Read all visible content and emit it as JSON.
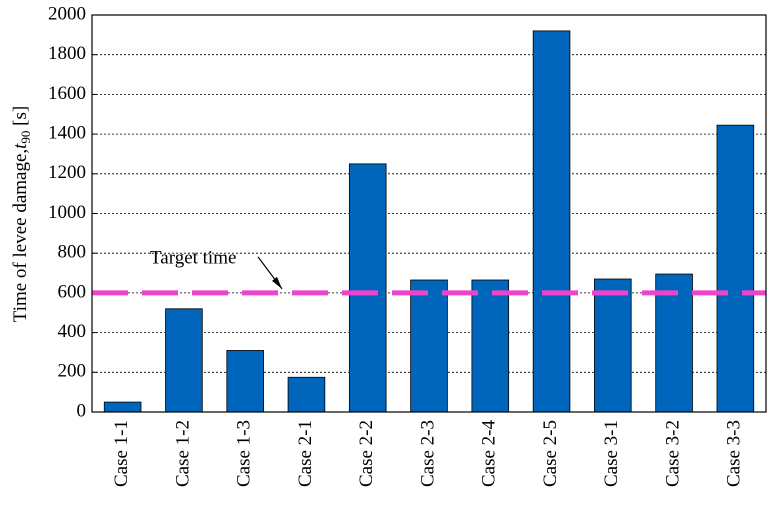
{
  "chart_data": {
    "type": "bar",
    "y_label_parts": [
      "Time of levee damage,",
      "t",
      "90",
      " [s]"
    ],
    "categories": [
      "Case 1-1",
      "Case 1-2",
      "Case 1-3",
      "Case 2-1",
      "Case 2-2",
      "Case 2-3",
      "Case 2-4",
      "Case 2-5",
      "Case 3-1",
      "Case 3-2",
      "Case 3-3"
    ],
    "values": [
      50,
      520,
      310,
      175,
      1250,
      665,
      665,
      1920,
      670,
      695,
      1445
    ],
    "color": "#0066bb",
    "ylim": [
      0,
      2000
    ],
    "yticks": [
      0,
      200,
      400,
      600,
      800,
      1000,
      1200,
      1400,
      1600,
      1800,
      2000
    ],
    "grid": true,
    "target": {
      "value": 600,
      "label": "Target time",
      "color": "#ee44cc"
    }
  }
}
